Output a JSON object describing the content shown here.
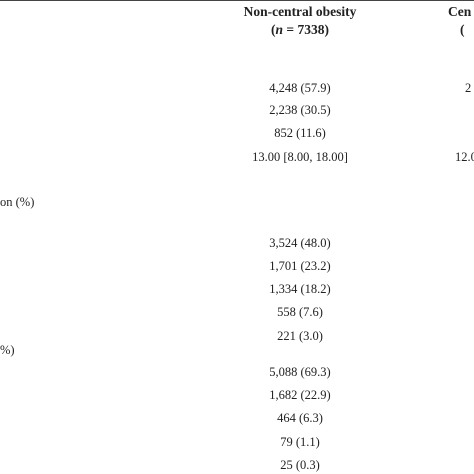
{
  "header": {
    "column": "Non-central obesity",
    "n_open": "(",
    "n_symbol": "n",
    "n_rest": " = 7338)",
    "next_column": "Cen",
    "next_n": "("
  },
  "labels": [
    "on (%)",
    "%)"
  ],
  "column_values": [
    "4,248 (57.9)",
    "2,238 (30.5)",
    "852 (11.6)",
    "13.00 [8.00, 18.00]",
    "3,524 (48.0)",
    "1,701 (23.2)",
    "1,334 (18.2)",
    "558 (7.6)",
    "221 (3.0)",
    "5,088 (69.3)",
    "1,682 (22.9)",
    "464 (6.3)",
    "79 (1.1)",
    "25 (0.3)"
  ],
  "next_column_values": [
    "2",
    "12.0"
  ]
}
